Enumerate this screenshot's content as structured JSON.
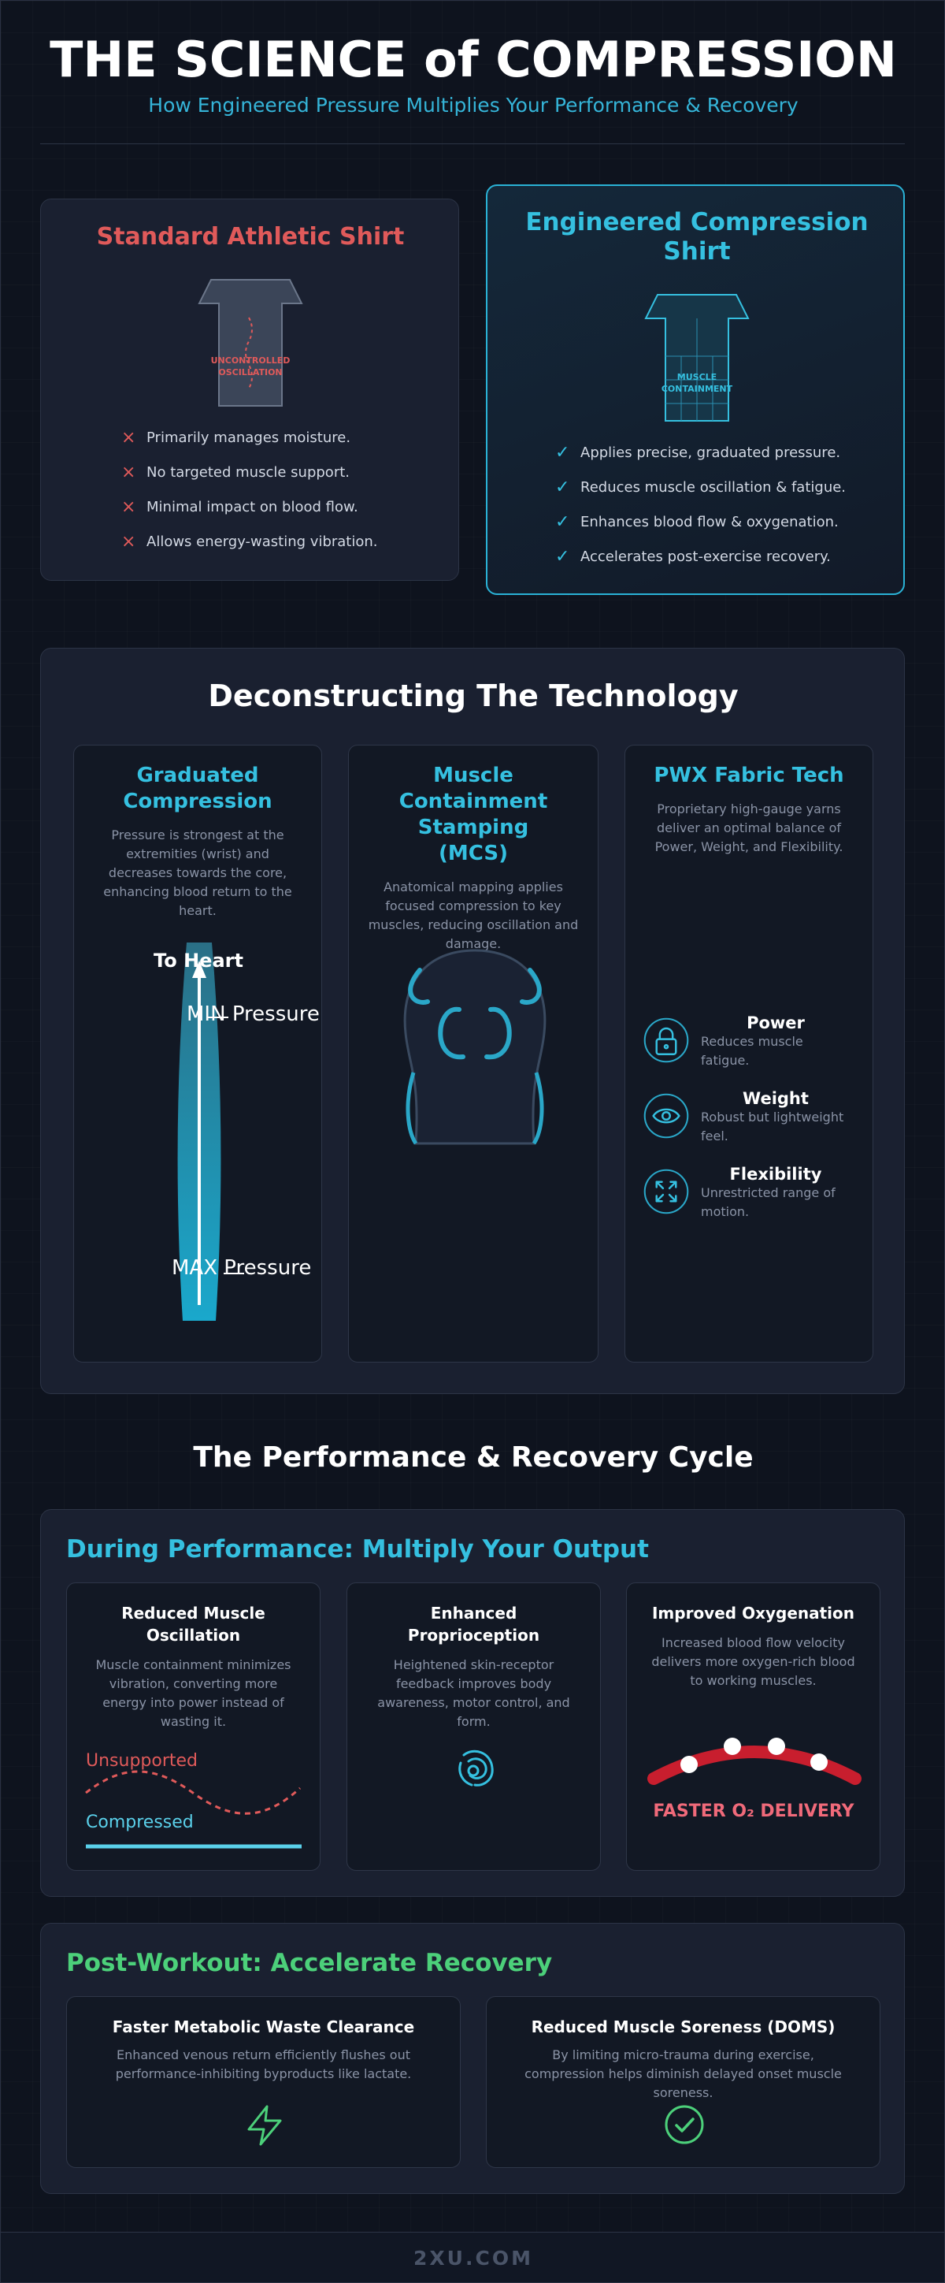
{
  "header": {
    "title": "THE SCIENCE of COMPRESSION",
    "subtitle": "How Engineered Pressure Multiplies Your Performance & Recovery"
  },
  "comparison": {
    "standard": {
      "title": "Standard Athletic Shirt",
      "shirt_label": [
        "UNCONTROLLED",
        "OSCILLATION"
      ],
      "items": [
        "Primarily manages moisture.",
        "No targeted muscle support.",
        "Minimal impact on blood flow.",
        "Allows energy-wasting vibration."
      ]
    },
    "engineered": {
      "title": "Engineered Compression Shirt",
      "shirt_label": [
        "MUSCLE",
        "CONTAINMENT"
      ],
      "items": [
        "Applies precise, graduated pressure.",
        "Reduces muscle oscillation & fatigue.",
        "Enhances blood flow & oxygenation.",
        "Accelerates post-exercise recovery."
      ]
    }
  },
  "technology": {
    "title": "Deconstructing The Technology",
    "columns": [
      {
        "title": "Graduated Compression",
        "text": "Pressure is strongest at the extremities (wrist) and decreases towards the core, enhancing blood return to the heart.",
        "labels": [
          "To Heart",
          "MIN Pressure",
          "MAX Pressure"
        ]
      },
      {
        "title": "Muscle Containment Stamping (MCS)",
        "text": "Anatomical mapping applies focused compression to key muscles, reducing oscillation and damage."
      },
      {
        "title": "PWX Fabric Tech",
        "text": "Proprietary high-gauge yarns deliver an optimal balance of Power, Weight, and Flexibility.",
        "features": [
          {
            "name": "Power",
            "text": "Reduces muscle fatigue."
          },
          {
            "name": "Weight",
            "text": "Robust but lightweight feel."
          },
          {
            "name": "Flexibility",
            "text": "Unrestricted range of motion."
          }
        ]
      }
    ]
  },
  "cycle": {
    "title": "The Performance & Recovery Cycle",
    "performance": {
      "title": "During Performance: Multiply Your Output",
      "cards": [
        {
          "title": "Reduced Muscle Oscillation",
          "text": "Muscle containment minimizes vibration, converting more energy into power instead of wasting it.",
          "labels": [
            "Unsupported",
            "Compressed"
          ]
        },
        {
          "title": "Enhanced Proprioception",
          "text": "Heightened skin-receptor feedback improves body awareness, motor control, and form."
        },
        {
          "title": "Improved Oxygenation",
          "text": "Increased blood flow velocity delivers more oxygen-rich blood to working muscles.",
          "label": "FASTER O₂ DELIVERY"
        }
      ]
    },
    "recovery": {
      "title": "Post-Workout: Accelerate Recovery",
      "cards": [
        {
          "title": "Faster Metabolic Waste Clearance",
          "text": "Enhanced venous return efficiently flushes out performance-inhibiting byproducts like lactate."
        },
        {
          "title": "Reduced Muscle Soreness (DOMS)",
          "text": "By limiting micro-trauma during exercise, compression helps diminish delayed onset muscle soreness."
        }
      ]
    }
  },
  "footer": {
    "text": "2XU.COM"
  }
}
